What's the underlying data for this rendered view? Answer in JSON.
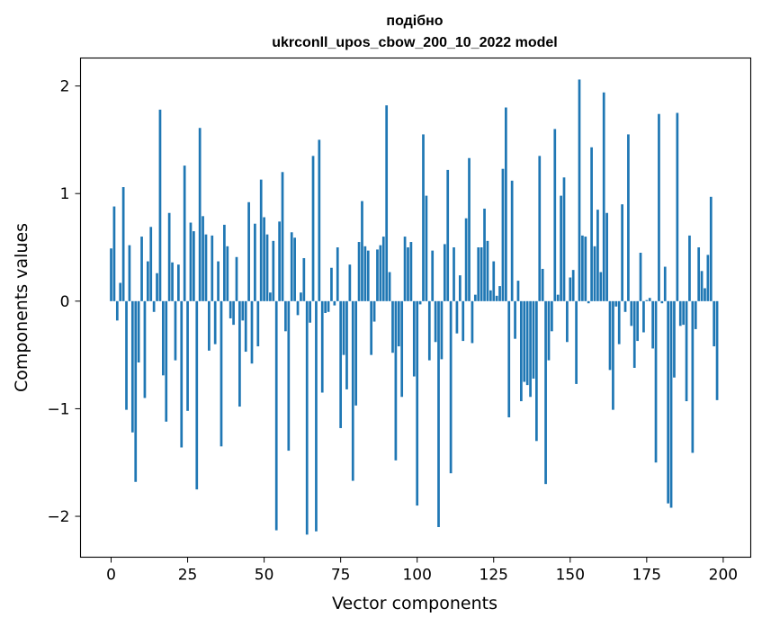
{
  "chart_data": {
    "type": "bar",
    "title_line1": "подібно",
    "title_line2": "ukrconll_upos_cbow_200_10_2022 model",
    "xlabel": "Vector components",
    "ylabel": "Components values",
    "xlim": [
      -10,
      209
    ],
    "ylim": [
      -2.38,
      2.26
    ],
    "xticks": [
      0,
      25,
      50,
      75,
      100,
      125,
      150,
      175,
      200
    ],
    "xtick_labels": [
      "0",
      "25",
      "50",
      "75",
      "100",
      "125",
      "150",
      "175",
      "200"
    ],
    "yticks": [
      -2,
      -1,
      0,
      1,
      2
    ],
    "ytick_labels": [
      "−2",
      "−1",
      "0",
      "1",
      "2"
    ],
    "bar_color": "#1f77b4",
    "values": [
      0.49,
      0.88,
      -0.18,
      0.17,
      1.06,
      -1.01,
      0.52,
      -1.22,
      -1.68,
      -0.57,
      0.6,
      -0.9,
      0.37,
      0.69,
      -0.1,
      0.26,
      1.78,
      -0.69,
      -1.12,
      0.82,
      0.36,
      -0.55,
      0.34,
      -1.36,
      1.26,
      -1.02,
      0.73,
      0.65,
      -1.75,
      1.61,
      0.79,
      0.62,
      -0.46,
      0.61,
      -0.4,
      0.37,
      -1.35,
      0.71,
      0.51,
      -0.16,
      -0.22,
      0.41,
      -0.98,
      -0.18,
      -0.47,
      0.92,
      -0.58,
      0.72,
      -0.42,
      1.13,
      0.78,
      0.62,
      0.08,
      0.56,
      -2.13,
      0.74,
      1.2,
      -0.28,
      -1.39,
      0.64,
      0.59,
      -0.13,
      0.08,
      0.4,
      -2.17,
      -0.2,
      1.35,
      -2.14,
      1.5,
      -0.85,
      -0.11,
      -0.1,
      0.31,
      -0.04,
      0.5,
      -1.18,
      -0.5,
      -0.82,
      0.34,
      -1.67,
      -0.97,
      0.55,
      0.93,
      0.51,
      0.47,
      -0.5,
      -0.19,
      0.48,
      0.52,
      0.6,
      1.82,
      0.27,
      -0.48,
      -1.48,
      -0.42,
      -0.89,
      0.6,
      0.5,
      0.55,
      -0.7,
      -1.9,
      -0.03,
      1.55,
      0.98,
      -0.55,
      0.47,
      -0.38,
      -2.1,
      -0.54,
      0.53,
      1.22,
      -1.6,
      0.5,
      -0.3,
      0.24,
      -0.37,
      0.77,
      1.33,
      -0.39,
      0.06,
      0.5,
      0.5,
      0.86,
      0.56,
      0.1,
      0.37,
      0.05,
      0.14,
      1.23,
      1.8,
      -1.08,
      1.12,
      -0.35,
      0.19,
      -0.93,
      -0.75,
      -0.78,
      -0.89,
      -0.72,
      -1.3,
      1.35,
      0.3,
      -1.7,
      -0.55,
      -0.28,
      1.6,
      0.06,
      0.98,
      1.15,
      -0.38,
      0.22,
      0.29,
      -0.77,
      2.06,
      0.61,
      0.6,
      -0.02,
      1.43,
      0.51,
      0.85,
      0.27,
      1.94,
      0.82,
      -0.64,
      -1.01,
      -0.05,
      -0.4,
      0.9,
      -0.1,
      1.55,
      -0.23,
      -0.62,
      -0.37,
      0.45,
      -0.29,
      0.01,
      0.03,
      -0.44,
      -1.5,
      1.74,
      -0.02,
      0.32,
      -1.88,
      -1.92,
      -0.71,
      1.75,
      -0.23,
      -0.22,
      -0.93,
      0.61,
      -1.41,
      -0.26,
      0.5,
      0.28,
      0.12,
      0.43,
      0.97,
      -0.42,
      -0.92
    ]
  }
}
